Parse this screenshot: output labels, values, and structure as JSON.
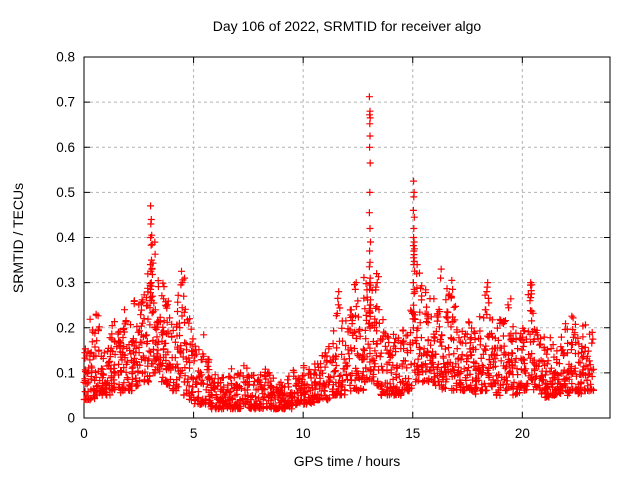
{
  "style": {
    "background": "#ffffff",
    "marker_color": "#ff0000",
    "grid_color": "#b4b4b4",
    "frame_color": "#000000",
    "text_color": "#000000",
    "marker_size": 7,
    "tick_length": 6
  },
  "chart_data": {
    "type": "scatter",
    "title": "Day 106 of 2022, SRMTID for receiver algo",
    "xlabel": "GPS time / hours",
    "ylabel": "SRMTID / TECUs",
    "xlim": [
      0,
      24
    ],
    "ylim": [
      0,
      0.8
    ],
    "xtick_values": [
      0,
      5,
      10,
      15,
      20
    ],
    "xtick_labels": [
      "0",
      "5",
      "10",
      "15",
      "20"
    ],
    "ytick_values": [
      0,
      0.1,
      0.2,
      0.3,
      0.4,
      0.5,
      0.6,
      0.7,
      0.8
    ],
    "ytick_labels": [
      "0",
      "0.1",
      "0.2",
      "0.3",
      "0.4",
      "0.5",
      "0.6",
      "0.7",
      "0.8"
    ],
    "grid": true,
    "legend": "none",
    "marker": "plus",
    "data_x_end_hours": 23.25,
    "bin_width_hours": 0.25,
    "skew_power": 1.7,
    "seed": 42,
    "density_bins": [
      [
        0.0,
        24,
        0.04,
        0.18
      ],
      [
        0.25,
        24,
        0.04,
        0.22
      ],
      [
        0.5,
        24,
        0.05,
        0.23
      ],
      [
        0.75,
        22,
        0.05,
        0.16
      ],
      [
        1.0,
        24,
        0.05,
        0.18
      ],
      [
        1.25,
        24,
        0.06,
        0.22
      ],
      [
        1.5,
        24,
        0.05,
        0.2
      ],
      [
        1.75,
        24,
        0.06,
        0.24
      ],
      [
        2.0,
        25,
        0.06,
        0.22
      ],
      [
        2.25,
        25,
        0.07,
        0.26
      ],
      [
        2.5,
        25,
        0.08,
        0.28
      ],
      [
        2.75,
        25,
        0.08,
        0.33
      ],
      [
        3.0,
        26,
        0.1,
        0.42
      ],
      [
        3.25,
        26,
        0.1,
        0.35
      ],
      [
        3.5,
        25,
        0.08,
        0.3
      ],
      [
        3.75,
        24,
        0.07,
        0.26
      ],
      [
        4.0,
        23,
        0.06,
        0.22
      ],
      [
        4.25,
        22,
        0.05,
        0.28
      ],
      [
        4.5,
        22,
        0.05,
        0.33
      ],
      [
        4.75,
        22,
        0.04,
        0.2
      ],
      [
        5.0,
        20,
        0.03,
        0.16
      ],
      [
        5.25,
        20,
        0.03,
        0.19
      ],
      [
        5.5,
        20,
        0.03,
        0.13
      ],
      [
        5.75,
        20,
        0.02,
        0.1
      ],
      [
        6.0,
        20,
        0.02,
        0.09
      ],
      [
        6.25,
        20,
        0.02,
        0.1
      ],
      [
        6.5,
        20,
        0.02,
        0.12
      ],
      [
        6.75,
        20,
        0.02,
        0.09
      ],
      [
        7.0,
        20,
        0.02,
        0.1
      ],
      [
        7.25,
        20,
        0.03,
        0.13
      ],
      [
        7.5,
        20,
        0.02,
        0.1
      ],
      [
        7.75,
        20,
        0.02,
        0.09
      ],
      [
        8.0,
        20,
        0.02,
        0.1
      ],
      [
        8.25,
        20,
        0.02,
        0.11
      ],
      [
        8.5,
        20,
        0.02,
        0.09
      ],
      [
        8.75,
        20,
        0.02,
        0.08
      ],
      [
        9.0,
        20,
        0.02,
        0.09
      ],
      [
        9.25,
        20,
        0.02,
        0.1
      ],
      [
        9.5,
        20,
        0.03,
        0.11
      ],
      [
        9.75,
        20,
        0.03,
        0.1
      ],
      [
        10.0,
        20,
        0.03,
        0.12
      ],
      [
        10.25,
        20,
        0.03,
        0.11
      ],
      [
        10.5,
        20,
        0.04,
        0.13
      ],
      [
        10.75,
        20,
        0.04,
        0.14
      ],
      [
        11.0,
        21,
        0.04,
        0.16
      ],
      [
        11.25,
        21,
        0.05,
        0.2
      ],
      [
        11.5,
        21,
        0.05,
        0.28
      ],
      [
        11.75,
        21,
        0.05,
        0.22
      ],
      [
        12.0,
        22,
        0.06,
        0.25
      ],
      [
        12.25,
        22,
        0.06,
        0.3
      ],
      [
        12.5,
        22,
        0.06,
        0.24
      ],
      [
        12.75,
        23,
        0.08,
        0.32
      ],
      [
        13.0,
        23,
        0.08,
        0.3
      ],
      [
        13.25,
        23,
        0.07,
        0.32
      ],
      [
        13.5,
        22,
        0.05,
        0.22
      ],
      [
        13.75,
        22,
        0.05,
        0.2
      ],
      [
        14.0,
        22,
        0.05,
        0.22
      ],
      [
        14.25,
        22,
        0.05,
        0.18
      ],
      [
        14.5,
        22,
        0.06,
        0.2
      ],
      [
        14.75,
        22,
        0.06,
        0.24
      ],
      [
        15.0,
        23,
        0.08,
        0.35
      ],
      [
        15.25,
        23,
        0.08,
        0.33
      ],
      [
        15.5,
        23,
        0.08,
        0.3
      ],
      [
        15.75,
        23,
        0.08,
        0.28
      ],
      [
        16.0,
        23,
        0.07,
        0.25
      ],
      [
        16.25,
        23,
        0.06,
        0.24
      ],
      [
        16.5,
        23,
        0.07,
        0.3
      ],
      [
        16.75,
        23,
        0.06,
        0.3
      ],
      [
        17.0,
        22,
        0.06,
        0.22
      ],
      [
        17.25,
        22,
        0.06,
        0.2
      ],
      [
        17.5,
        22,
        0.06,
        0.22
      ],
      [
        17.75,
        22,
        0.05,
        0.2
      ],
      [
        18.0,
        22,
        0.06,
        0.24
      ],
      [
        18.25,
        22,
        0.06,
        0.3
      ],
      [
        18.5,
        22,
        0.06,
        0.25
      ],
      [
        18.75,
        22,
        0.05,
        0.22
      ],
      [
        19.0,
        22,
        0.06,
        0.25
      ],
      [
        19.25,
        22,
        0.06,
        0.28
      ],
      [
        19.5,
        22,
        0.05,
        0.22
      ],
      [
        19.75,
        22,
        0.05,
        0.2
      ],
      [
        20.0,
        22,
        0.06,
        0.2
      ],
      [
        20.25,
        22,
        0.08,
        0.3
      ],
      [
        20.5,
        22,
        0.06,
        0.2
      ],
      [
        20.75,
        22,
        0.05,
        0.18
      ],
      [
        21.0,
        22,
        0.04,
        0.16
      ],
      [
        21.25,
        22,
        0.05,
        0.18
      ],
      [
        21.5,
        22,
        0.05,
        0.2
      ],
      [
        21.75,
        22,
        0.06,
        0.22
      ],
      [
        22.0,
        22,
        0.05,
        0.2
      ],
      [
        22.25,
        22,
        0.06,
        0.23
      ],
      [
        22.5,
        22,
        0.05,
        0.2
      ],
      [
        22.75,
        22,
        0.06,
        0.22
      ],
      [
        23.0,
        20,
        0.06,
        0.2
      ]
    ],
    "peak_points": [
      [
        0.55,
        0.23
      ],
      [
        1.85,
        0.24
      ],
      [
        2.3,
        0.26
      ],
      [
        3.04,
        0.47
      ],
      [
        3.07,
        0.44
      ],
      [
        3.05,
        0.43
      ],
      [
        3.09,
        0.405
      ],
      [
        3.04,
        0.4
      ],
      [
        3.11,
        0.385
      ],
      [
        3.06,
        0.383
      ],
      [
        3.08,
        0.35
      ],
      [
        3.03,
        0.34
      ],
      [
        3.1,
        0.33
      ],
      [
        3.05,
        0.325
      ],
      [
        3.12,
        0.318
      ],
      [
        3.07,
        0.3
      ],
      [
        3.02,
        0.298
      ],
      [
        3.09,
        0.292
      ],
      [
        3.04,
        0.285
      ],
      [
        3.13,
        0.27
      ],
      [
        3.06,
        0.268
      ],
      [
        3.01,
        0.26
      ],
      [
        4.45,
        0.325
      ],
      [
        4.48,
        0.3
      ],
      [
        4.42,
        0.295
      ],
      [
        4.55,
        0.27
      ],
      [
        4.82,
        0.22
      ],
      [
        4.78,
        0.21
      ],
      [
        11.62,
        0.28
      ],
      [
        11.58,
        0.265
      ],
      [
        12.42,
        0.3
      ],
      [
        12.38,
        0.285
      ],
      [
        13.02,
        0.712
      ],
      [
        13.05,
        0.68
      ],
      [
        13.03,
        0.672
      ],
      [
        13.06,
        0.665
      ],
      [
        13.04,
        0.652
      ],
      [
        13.05,
        0.625
      ],
      [
        13.03,
        0.6
      ],
      [
        13.06,
        0.565
      ],
      [
        13.04,
        0.5
      ],
      [
        13.02,
        0.455
      ],
      [
        13.05,
        0.42
      ],
      [
        13.07,
        0.39
      ],
      [
        13.03,
        0.37
      ],
      [
        13.05,
        0.345
      ],
      [
        13.02,
        0.335
      ],
      [
        13.06,
        0.31
      ],
      [
        13.04,
        0.3
      ],
      [
        13.03,
        0.285
      ],
      [
        13.07,
        0.262
      ],
      [
        13.05,
        0.25
      ],
      [
        13.02,
        0.242
      ],
      [
        13.04,
        0.232
      ],
      [
        13.06,
        0.225
      ],
      [
        13.03,
        0.21
      ],
      [
        13.35,
        0.32
      ],
      [
        13.38,
        0.3
      ],
      [
        13.32,
        0.29
      ],
      [
        15.04,
        0.525
      ],
      [
        15.06,
        0.5
      ],
      [
        15.05,
        0.49
      ],
      [
        15.03,
        0.46
      ],
      [
        15.07,
        0.445
      ],
      [
        15.05,
        0.42
      ],
      [
        15.04,
        0.4
      ],
      [
        15.06,
        0.39
      ],
      [
        15.03,
        0.382
      ],
      [
        15.08,
        0.375
      ],
      [
        15.05,
        0.37
      ],
      [
        15.06,
        0.362
      ],
      [
        15.04,
        0.355
      ],
      [
        15.07,
        0.347
      ],
      [
        15.05,
        0.34
      ],
      [
        15.03,
        0.3
      ],
      [
        15.06,
        0.285
      ],
      [
        15.04,
        0.25
      ],
      [
        15.05,
        0.235
      ],
      [
        15.07,
        0.22
      ],
      [
        15.03,
        0.2
      ],
      [
        16.3,
        0.33
      ],
      [
        16.27,
        0.31
      ],
      [
        16.78,
        0.305
      ],
      [
        16.82,
        0.285
      ],
      [
        16.75,
        0.27
      ],
      [
        18.42,
        0.3
      ],
      [
        18.38,
        0.28
      ],
      [
        18.45,
        0.265
      ],
      [
        20.38,
        0.3
      ],
      [
        20.42,
        0.275
      ],
      [
        20.35,
        0.26
      ]
    ]
  }
}
